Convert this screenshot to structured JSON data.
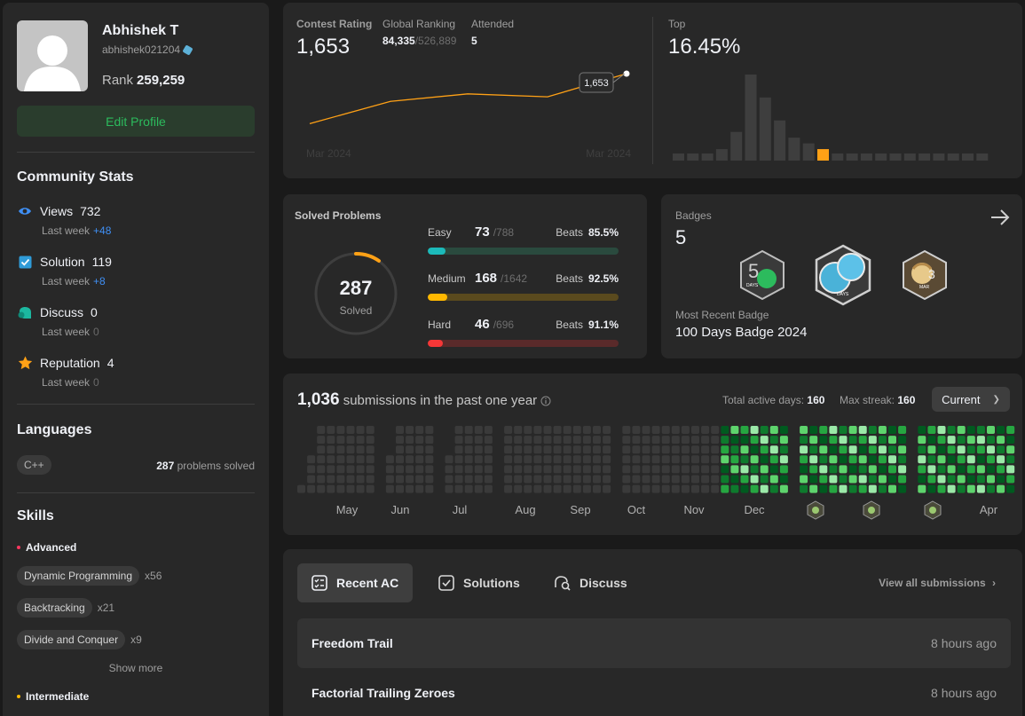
{
  "profile": {
    "name": "Abhishek T",
    "username": "abhishek021204",
    "rank_label": "Rank",
    "rank_value": "259,259",
    "edit_label": "Edit Profile"
  },
  "community": {
    "title": "Community Stats",
    "last_week_label": "Last week",
    "items": [
      {
        "icon": "eye-icon",
        "label": "Views",
        "value": "732",
        "delta": "+48"
      },
      {
        "icon": "checkbox-icon",
        "label": "Solution",
        "value": "119",
        "delta": "+8"
      },
      {
        "icon": "discuss-icon",
        "label": "Discuss",
        "value": "0",
        "delta": "0"
      },
      {
        "icon": "star-icon",
        "label": "Reputation",
        "value": "4",
        "delta": "0"
      }
    ]
  },
  "languages": {
    "title": "Languages",
    "items": [
      {
        "name": "C++",
        "solved": "287",
        "suffix": "problems solved"
      }
    ]
  },
  "skills": {
    "title": "Skills",
    "advanced_label": "Advanced",
    "intermediate_label": "Intermediate",
    "advanced": [
      {
        "name": "Dynamic Programming",
        "count": "x56"
      },
      {
        "name": "Backtracking",
        "count": "x21"
      },
      {
        "name": "Divide and Conquer",
        "count": "x9"
      }
    ],
    "show_more": "Show more",
    "colors": {
      "advanced": "#ff375f",
      "intermediate": "#ffb800"
    }
  },
  "contest": {
    "rating_label": "Contest Rating",
    "rating": "1,653",
    "global_label": "Global Ranking",
    "global_rank": "84,335",
    "global_total": "/526,889",
    "attended_label": "Attended",
    "attended": "5",
    "top_label": "Top",
    "top_value": "16.45%",
    "axis_start": "Mar 2024",
    "axis_end": "Mar 2024",
    "tooltip": "1,653",
    "line_color": "#ffa116"
  },
  "chart_data": [
    {
      "type": "line",
      "title": "",
      "values": [
        1500,
        1568,
        1591,
        1582,
        1653
      ],
      "categories": [
        "Mar 2024",
        "",
        "",
        "",
        "Mar 2024"
      ]
    },
    {
      "type": "bar",
      "title": "",
      "values": [
        1,
        1,
        1,
        2,
        5,
        15,
        11,
        7,
        4,
        3,
        2,
        1,
        1,
        1,
        1,
        1,
        1,
        1,
        1,
        1,
        1,
        1
      ],
      "highlight_index": 10,
      "highlight_color": "#ffa116"
    }
  ],
  "solved": {
    "title": "Solved Problems",
    "total": "287",
    "total_label": "Solved",
    "beats_label": "Beats",
    "levels": [
      {
        "name": "Easy",
        "solved": "73",
        "total": "/788",
        "beats": "85.5%",
        "fraction": 0.093,
        "color": "#1cbaba",
        "track": "#2a4a3e"
      },
      {
        "name": "Medium",
        "solved": "168",
        "total": "/1642",
        "beats": "92.5%",
        "fraction": 0.102,
        "color": "#ffb800",
        "track": "#5a4a1e"
      },
      {
        "name": "Hard",
        "solved": "46",
        "total": "/696",
        "beats": "91.1%",
        "fraction": 0.066,
        "color": "#f63737",
        "track": "#5a2a2a"
      }
    ]
  },
  "badges": {
    "title": "Badges",
    "count": "5",
    "recent_label": "Most Recent Badge",
    "recent_name": "100 Days Badge 2024",
    "items": [
      {
        "name": "50 days badge",
        "text": "DAYS"
      },
      {
        "name": "100 days badge",
        "text": "DAYS"
      },
      {
        "name": "march daily badge",
        "text": "MAR"
      }
    ]
  },
  "submissions": {
    "count": "1,036",
    "suffix": "submissions in the past one year",
    "active_label": "Total active days:",
    "active": "160",
    "streak_label": "Max streak:",
    "streak": "160",
    "period": "Current",
    "months": [
      "May",
      "Jun",
      "Jul",
      "Aug",
      "Sep",
      "Oct",
      "Nov",
      "Dec",
      "",
      "",
      "",
      "Apr"
    ]
  },
  "recent": {
    "tabs": [
      "Recent AC",
      "Solutions",
      "Discuss"
    ],
    "view_all": "View all submissions",
    "items": [
      {
        "title": "Freedom Trail",
        "time": "8 hours ago"
      },
      {
        "title": "Factorial Trailing Zeroes",
        "time": "8 hours ago"
      }
    ]
  }
}
